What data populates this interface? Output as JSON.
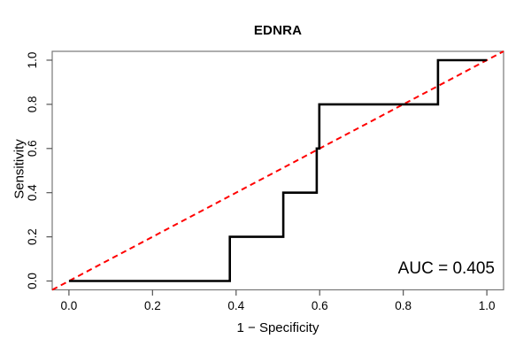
{
  "figure": {
    "background": "#ffffff"
  },
  "chart_data": {
    "type": "line",
    "subtype": "roc-step-curve",
    "title": "EDNRA",
    "xlabel": "1 − Specificity",
    "ylabel": "Sensitivity",
    "annotation": "AUC = 0.405",
    "auc": 0.405,
    "xlim": [
      -0.04,
      1.04
    ],
    "ylim": [
      -0.04,
      1.04
    ],
    "x_ticks": [
      0.0,
      0.2,
      0.4,
      0.6,
      0.8,
      1.0
    ],
    "y_ticks": [
      0.0,
      0.2,
      0.4,
      0.6,
      0.8,
      1.0
    ],
    "x_tick_labels": [
      "0.0",
      "0.2",
      "0.4",
      "0.6",
      "0.8",
      "1.0"
    ],
    "y_tick_labels": [
      "0.0",
      "0.2",
      "0.4",
      "0.6",
      "0.8",
      "1.0"
    ],
    "grid": false,
    "legend": false,
    "series": [
      {
        "name": "roc-curve",
        "color": "#000000",
        "style": "solid",
        "width": 2.6,
        "points": [
          [
            0.0,
            0.0
          ],
          [
            0.385,
            0.0
          ],
          [
            0.385,
            0.2
          ],
          [
            0.513,
            0.2
          ],
          [
            0.513,
            0.4
          ],
          [
            0.593,
            0.4
          ],
          [
            0.593,
            0.6
          ],
          [
            0.599,
            0.6
          ],
          [
            0.599,
            0.8
          ],
          [
            0.883,
            0.8
          ],
          [
            0.883,
            1.0
          ],
          [
            1.0,
            1.0
          ]
        ]
      },
      {
        "name": "chance-diagonal",
        "color": "#ff0000",
        "style": "dashed",
        "width": 2,
        "points": [
          [
            -0.04,
            -0.04
          ],
          [
            1.04,
            1.04
          ]
        ]
      }
    ],
    "colors": {
      "curve": "#000000",
      "diagonal": "#ff0000",
      "box": "#777777",
      "ticks": "#555555",
      "text": "#000000"
    }
  }
}
